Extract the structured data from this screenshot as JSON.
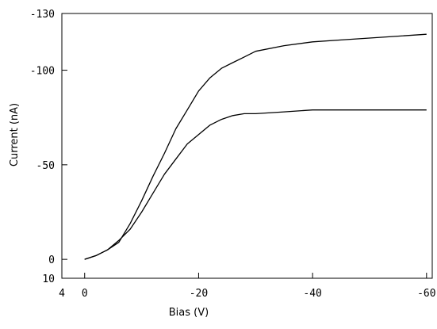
{
  "chart_data": {
    "type": "line",
    "title": "",
    "xlabel": "Bias (V)",
    "ylabel": "Current (nA)",
    "xlim": [
      4,
      -61
    ],
    "ylim": [
      10,
      -130
    ],
    "x_tick_values": [
      4,
      0,
      -20,
      -40,
      -60
    ],
    "x_tick_labels": [
      "4",
      "0",
      "-20",
      "-40",
      "-60"
    ],
    "y_tick_values": [
      10,
      0,
      -50,
      -100,
      -130
    ],
    "y_tick_labels": [
      "10",
      "0",
      "-50",
      "-100",
      "-130"
    ],
    "grid": false,
    "legend": "none",
    "series": [
      {
        "x": [
          0,
          -2,
          -4,
          -6,
          -8,
          -10,
          -12,
          -14,
          -16,
          -18,
          -20,
          -22,
          -24,
          -26,
          -28,
          -30,
          -35,
          -40,
          -45,
          -50,
          -55,
          -60
        ],
        "values": [
          0,
          -2,
          -5,
          -9,
          -19,
          -31,
          -44,
          -56,
          -69,
          -79,
          -89,
          -96,
          -101,
          -104,
          -107,
          -110,
          -113,
          -115,
          -116,
          -117,
          -118,
          -119
        ]
      },
      {
        "x": [
          0,
          -2,
          -4,
          -6,
          -8,
          -10,
          -12,
          -14,
          -16,
          -18,
          -20,
          -22,
          -24,
          -26,
          -28,
          -30,
          -35,
          -40,
          -45,
          -50,
          -55,
          -60
        ],
        "values": [
          0,
          -2,
          -5,
          -10,
          -16,
          -25,
          -35,
          -45,
          -53,
          -61,
          -66,
          -71,
          -74,
          -76,
          -77,
          -77,
          -78,
          -79,
          -79,
          -79,
          -79,
          -79
        ]
      }
    ]
  }
}
